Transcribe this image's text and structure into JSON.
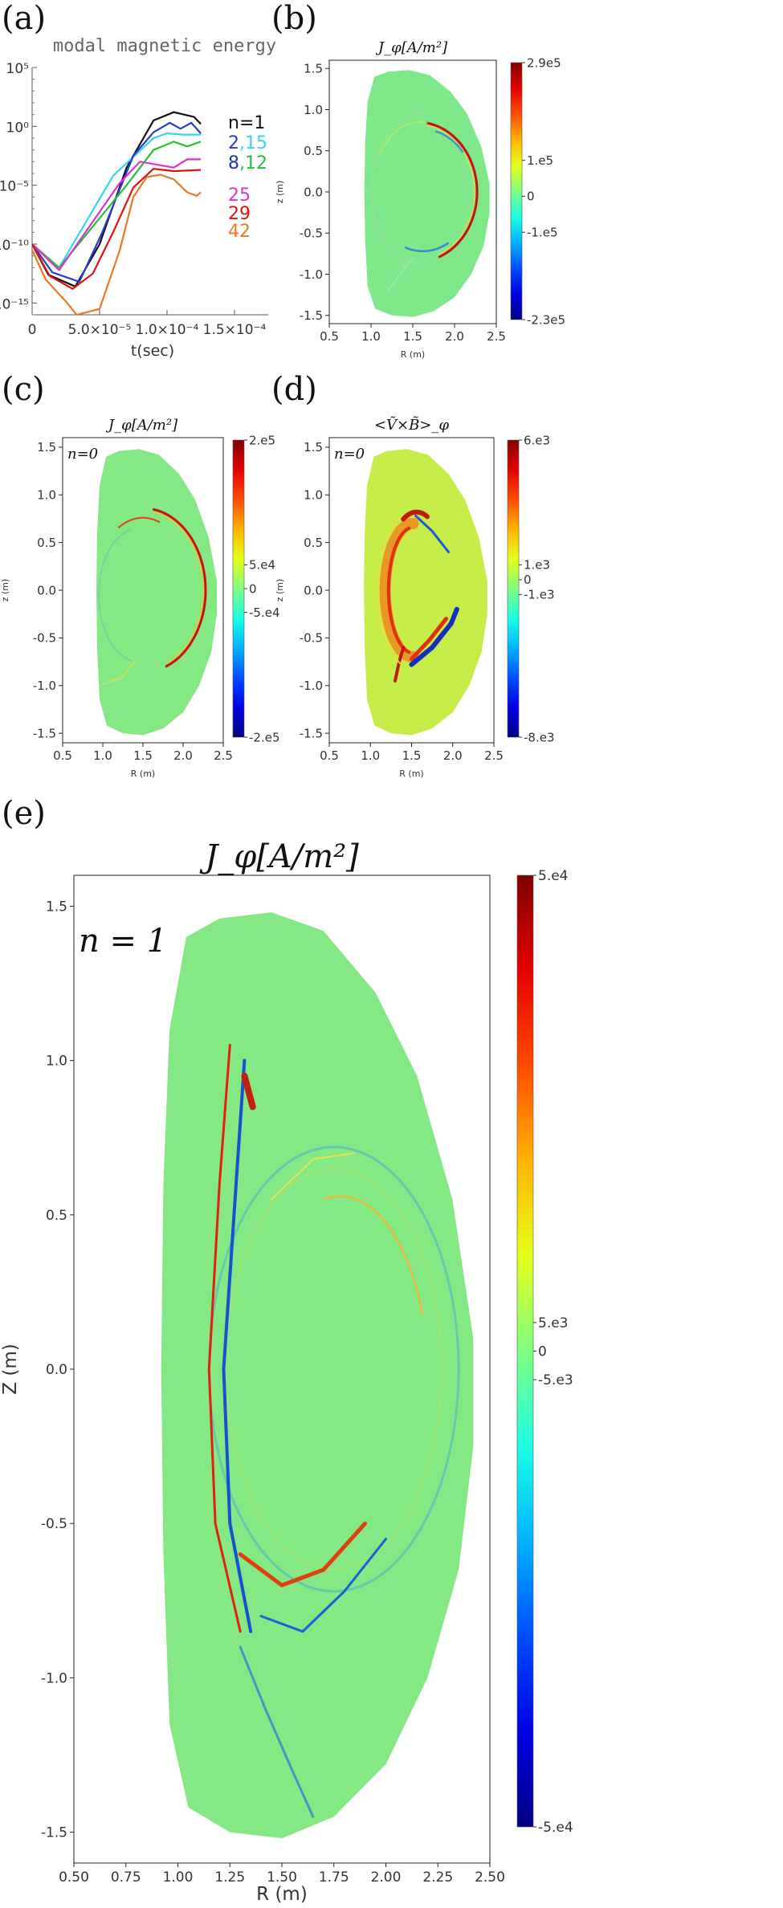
{
  "panels": {
    "a": {
      "letter": "(a)"
    },
    "b": {
      "letter": "(b)"
    },
    "c": {
      "letter": "(c)"
    },
    "d": {
      "letter": "(d)"
    },
    "e": {
      "letter": "(e)"
    }
  },
  "chart_data": [
    {
      "id": "a",
      "type": "line",
      "title": "modal magnetic energy",
      "xlabel": "t(sec)",
      "ylabel": "",
      "y_scale": "log",
      "xlim": [
        0,
        0.000175
      ],
      "ylim_exp": [
        -16,
        5
      ],
      "x_tick_values": [
        0,
        5e-05,
        0.0001,
        0.00015
      ],
      "x_tick_labels": [
        "0",
        "5.0×10⁻⁵",
        "1.0×10⁻⁴",
        "1.5×10⁻⁴"
      ],
      "y_tick_exponents": [
        5,
        0,
        -5,
        -10,
        -15
      ],
      "y_tick_labels": [
        "10⁵",
        "10⁰",
        "10⁻⁵",
        "10⁻¹⁰",
        "10⁻¹⁵"
      ],
      "legend_groups": [
        {
          "parts": [
            {
              "text": "n=1",
              "color": "#111111"
            }
          ]
        },
        {
          "parts": [
            {
              "text": "2",
              "color": "#2a3ccf"
            },
            {
              "text": ",15",
              "color": "#33d6f0"
            }
          ]
        },
        {
          "parts": [
            {
              "text": "8",
              "color": "#2233aa"
            },
            {
              "text": ",12",
              "color": "#22c233"
            }
          ]
        },
        {
          "parts": [
            {
              "text": "25",
              "color": "#dd33cc"
            }
          ]
        },
        {
          "parts": [
            {
              "text": "29",
              "color": "#dd1111"
            }
          ]
        },
        {
          "parts": [
            {
              "text": "42",
              "color": "#ee7722"
            }
          ]
        }
      ],
      "series": [
        {
          "color": "#111111",
          "points": [
            [
              0,
              -10
            ],
            [
              1.2e-05,
              -12.6
            ],
            [
              3.2e-05,
              -13.6
            ],
            [
              5e-05,
              -10
            ],
            [
              7e-05,
              -3.5
            ],
            [
              9e-05,
              0.5
            ],
            [
              0.000105,
              1.2
            ],
            [
              0.00012,
              0.8
            ],
            [
              0.000125,
              0.2
            ]
          ]
        },
        {
          "color": "#33d6f0",
          "points": [
            [
              0,
              -10
            ],
            [
              2e-05,
              -12
            ],
            [
              6e-05,
              -4.2
            ],
            [
              9e-05,
              -1
            ],
            [
              0.0001,
              -0.6
            ],
            [
              0.000112,
              -0.7
            ],
            [
              0.000125,
              -0.7
            ]
          ]
        },
        {
          "color": "#2a3ccf",
          "points": [
            [
              0,
              -10
            ],
            [
              1.5e-05,
              -12.4
            ],
            [
              3.5e-05,
              -13.2
            ],
            [
              5.2e-05,
              -9
            ],
            [
              7.5e-05,
              -2.5
            ],
            [
              9e-05,
              -0.5
            ],
            [
              0.000102,
              0.3
            ],
            [
              0.00011,
              -0.2
            ],
            [
              0.000118,
              0.3
            ],
            [
              0.000125,
              -0.6
            ]
          ]
        },
        {
          "color": "#22c233",
          "points": [
            [
              0,
              -10
            ],
            [
              2e-05,
              -12
            ],
            [
              7e-05,
              -5
            ],
            [
              9e-05,
              -2
            ],
            [
              0.000105,
              -1.3
            ],
            [
              0.000115,
              -1.7
            ],
            [
              0.000125,
              -1.3
            ]
          ]
        },
        {
          "color": "#dd33cc",
          "points": [
            [
              0,
              -10
            ],
            [
              2e-05,
              -12.2
            ],
            [
              6.5e-05,
              -4.8
            ],
            [
              8e-05,
              -3
            ],
            [
              9e-05,
              -3.2
            ],
            [
              0.000105,
              -3.5
            ],
            [
              0.000115,
              -2.8
            ],
            [
              0.000125,
              -2.8
            ]
          ]
        },
        {
          "color": "#dd1111",
          "points": [
            [
              0,
              -10
            ],
            [
              1.3e-05,
              -12.7
            ],
            [
              3e-05,
              -13.8
            ],
            [
              4.5e-05,
              -12.5
            ],
            [
              6e-05,
              -9
            ],
            [
              7.5e-05,
              -5.2
            ],
            [
              9e-05,
              -3.6
            ],
            [
              0.000105,
              -3.8
            ],
            [
              0.000125,
              -3.7
            ]
          ]
        },
        {
          "color": "#ee7722",
          "points": [
            [
              0,
              -10.5
            ],
            [
              1e-05,
              -13
            ],
            [
              2.6e-05,
              -15
            ],
            [
              3.3e-05,
              -16
            ],
            [
              5e-05,
              -15.5
            ],
            [
              6.5e-05,
              -10.5
            ],
            [
              7.5e-05,
              -6
            ],
            [
              8.5e-05,
              -4.3
            ],
            [
              9.5e-05,
              -4.1
            ],
            [
              0.000105,
              -4.5
            ],
            [
              0.000115,
              -5.6
            ],
            [
              0.000122,
              -5.9
            ],
            [
              0.000125,
              -5.6
            ]
          ]
        }
      ]
    },
    {
      "id": "b",
      "type": "heatmap",
      "title": "J_φ[A/m²]",
      "xlabel": "R (m)",
      "ylabel": "z (m)",
      "xlim": [
        0.5,
        2.5
      ],
      "ylim": [
        -1.6,
        1.6
      ],
      "x_ticks": [
        "0.5",
        "1.0",
        "1.5",
        "2.0",
        "2.5"
      ],
      "y_ticks": [
        "1.5",
        "1.0",
        "0.5",
        "0.0",
        "-0.5",
        "-1.0",
        "-1.5"
      ],
      "colorbar_labels": [
        "2.9e5",
        "1.e5",
        "0",
        "-1.e5",
        "-2.3e5"
      ],
      "annotation": ""
    },
    {
      "id": "c",
      "type": "heatmap",
      "title": "J_φ[A/m²]",
      "xlabel": "R (m)",
      "ylabel": "z (m)",
      "xlim": [
        0.5,
        2.5
      ],
      "ylim": [
        -1.6,
        1.6
      ],
      "x_ticks": [
        "0.5",
        "1.0",
        "1.5",
        "2.0",
        "2.5"
      ],
      "y_ticks": [
        "1.5",
        "1.0",
        "0.5",
        "0.0",
        "-0.5",
        "-1.0",
        "-1.5"
      ],
      "colorbar_labels": [
        "2.e5",
        "5.e4",
        "0",
        "-5.e4",
        "-2.e5"
      ],
      "annotation": "n=0"
    },
    {
      "id": "d",
      "type": "heatmap",
      "title": "<Ṽ×B̃>_φ",
      "xlabel": "R (m)",
      "ylabel": "z (m)",
      "xlim": [
        0.5,
        2.5
      ],
      "ylim": [
        -1.6,
        1.6
      ],
      "x_ticks": [
        "0.5",
        "1.0",
        "1.5",
        "2.0",
        "2.5"
      ],
      "y_ticks": [
        "1.5",
        "1.0",
        "0.5",
        "0.0",
        "-0.5",
        "-1.0",
        "-1.5"
      ],
      "colorbar_labels": [
        "6.e3",
        "1.e3",
        "0",
        "-1.e3",
        "-8.e3"
      ],
      "annotation": "n=0"
    },
    {
      "id": "e",
      "type": "heatmap",
      "title": "J_φ[A/m²]",
      "xlabel": "R (m)",
      "ylabel": "Z (m)",
      "xlim": [
        0.5,
        2.5
      ],
      "ylim": [
        -1.6,
        1.6
      ],
      "x_ticks": [
        "0.50",
        "0.75",
        "1.00",
        "1.25",
        "1.50",
        "1.75",
        "2.00",
        "2.25",
        "2.50"
      ],
      "y_ticks": [
        "1.5",
        "1.0",
        "0.5",
        "0.0",
        "-0.5",
        "-1.0",
        "-1.5"
      ],
      "colorbar_labels": [
        "5.e4",
        "5.e3",
        "0",
        "-5.e3",
        "-5.e4"
      ],
      "annotation": "n = 1"
    }
  ]
}
